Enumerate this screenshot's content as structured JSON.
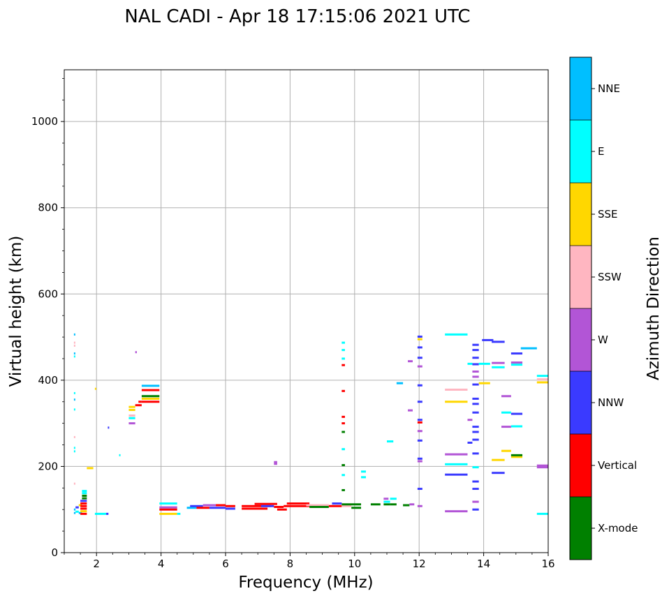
{
  "chart_data": {
    "type": "scatter",
    "title": "NAL CADI - Apr 18 17:15:06 2021 UTC",
    "xlabel": "Frequency (MHz)",
    "ylabel": "Virtual height (km)",
    "xlim": [
      1,
      16
    ],
    "ylim": [
      0,
      1120
    ],
    "xticks": [
      2,
      4,
      6,
      8,
      10,
      12,
      14,
      16
    ],
    "yticks": [
      0,
      200,
      400,
      600,
      800,
      1000
    ],
    "grid": true,
    "colorbar": {
      "label": "Azimuth Direction",
      "categories": [
        {
          "name": "X-mode",
          "color": "#008000"
        },
        {
          "name": "Vertical",
          "color": "#ff0000"
        },
        {
          "name": "NNW",
          "color": "#3a3aff"
        },
        {
          "name": "W",
          "color": "#b255d6"
        },
        {
          "name": "SSW",
          "color": "#ffb6c1"
        },
        {
          "name": "SSE",
          "color": "#ffd700"
        },
        {
          "name": "E",
          "color": "#00ffff"
        },
        {
          "name": "NNE",
          "color": "#00bfff"
        }
      ]
    },
    "echoes": [
      {
        "f1": 1.3,
        "f2": 1.35,
        "h": 92,
        "dir": "NNE"
      },
      {
        "f1": 1.3,
        "f2": 1.35,
        "h": 100,
        "dir": "NNE"
      },
      {
        "f1": 1.35,
        "f2": 1.45,
        "h": 95,
        "dir": "E"
      },
      {
        "f1": 1.35,
        "f2": 1.45,
        "h": 105,
        "dir": "NNW"
      },
      {
        "f1": 1.45,
        "f2": 1.55,
        "h": 92,
        "dir": "NNE"
      },
      {
        "f1": 1.45,
        "f2": 1.55,
        "h": 110,
        "dir": "SSE"
      },
      {
        "f1": 1.5,
        "f2": 1.7,
        "h": 90,
        "dir": "Vertical"
      },
      {
        "f1": 1.5,
        "f2": 1.7,
        "h": 96,
        "dir": "SSE"
      },
      {
        "f1": 1.5,
        "f2": 1.7,
        "h": 102,
        "dir": "Vertical"
      },
      {
        "f1": 1.5,
        "f2": 1.7,
        "h": 108,
        "dir": "Vertical"
      },
      {
        "f1": 1.5,
        "f2": 1.7,
        "h": 114,
        "dir": "Vertical"
      },
      {
        "f1": 1.5,
        "f2": 1.7,
        "h": 120,
        "dir": "NNW"
      },
      {
        "f1": 1.55,
        "f2": 1.7,
        "h": 126,
        "dir": "X-mode"
      },
      {
        "f1": 1.55,
        "f2": 1.7,
        "h": 132,
        "dir": "X-mode"
      },
      {
        "f1": 1.55,
        "f2": 1.7,
        "h": 138,
        "dir": "E"
      },
      {
        "f1": 1.55,
        "f2": 1.7,
        "h": 143,
        "dir": "E"
      },
      {
        "f1": 1.3,
        "f2": 1.33,
        "h": 160,
        "dir": "SSW"
      },
      {
        "f1": 1.3,
        "f2": 1.33,
        "h": 235,
        "dir": "E"
      },
      {
        "f1": 1.3,
        "f2": 1.33,
        "h": 243,
        "dir": "E"
      },
      {
        "f1": 1.3,
        "f2": 1.33,
        "h": 268,
        "dir": "SSW"
      },
      {
        "f1": 1.3,
        "f2": 1.33,
        "h": 332,
        "dir": "E"
      },
      {
        "f1": 1.3,
        "f2": 1.33,
        "h": 355,
        "dir": "NNE"
      },
      {
        "f1": 1.3,
        "f2": 1.33,
        "h": 370,
        "dir": "E"
      },
      {
        "f1": 1.3,
        "f2": 1.33,
        "h": 455,
        "dir": "E"
      },
      {
        "f1": 1.3,
        "f2": 1.33,
        "h": 462,
        "dir": "NNE"
      },
      {
        "f1": 1.3,
        "f2": 1.33,
        "h": 480,
        "dir": "SSW"
      },
      {
        "f1": 1.3,
        "f2": 1.33,
        "h": 487,
        "dir": "SSW"
      },
      {
        "f1": 1.3,
        "f2": 1.33,
        "h": 506,
        "dir": "NNE"
      },
      {
        "f1": 1.7,
        "f2": 1.9,
        "h": 196,
        "dir": "SSE"
      },
      {
        "f1": 1.95,
        "f2": 2.3,
        "h": 90,
        "dir": "E"
      },
      {
        "f1": 2.3,
        "f2": 2.37,
        "h": 90,
        "dir": "NNW"
      },
      {
        "f1": 2.35,
        "f2": 2.38,
        "h": 290,
        "dir": "NNW"
      },
      {
        "f1": 1.95,
        "f2": 1.98,
        "h": 380,
        "dir": "SSE"
      },
      {
        "f1": 2.7,
        "f2": 2.73,
        "h": 226,
        "dir": "E"
      },
      {
        "f1": 3.0,
        "f2": 3.2,
        "h": 300,
        "dir": "W"
      },
      {
        "f1": 3.0,
        "f2": 3.2,
        "h": 312,
        "dir": "E"
      },
      {
        "f1": 3.0,
        "f2": 3.2,
        "h": 318,
        "dir": "SSW"
      },
      {
        "f1": 3.0,
        "f2": 3.2,
        "h": 331,
        "dir": "SSE"
      },
      {
        "f1": 3.0,
        "f2": 3.2,
        "h": 338,
        "dir": "SSE"
      },
      {
        "f1": 3.2,
        "f2": 3.25,
        "h": 465,
        "dir": "W"
      },
      {
        "f1": 3.2,
        "f2": 3.4,
        "h": 342,
        "dir": "Vertical"
      },
      {
        "f1": 3.3,
        "f2": 3.4,
        "h": 350,
        "dir": "Vertical"
      },
      {
        "f1": 3.4,
        "f2": 3.95,
        "h": 350,
        "dir": "Vertical"
      },
      {
        "f1": 3.4,
        "f2": 3.95,
        "h": 357,
        "dir": "SSE"
      },
      {
        "f1": 3.4,
        "f2": 3.95,
        "h": 363,
        "dir": "X-mode"
      },
      {
        "f1": 3.4,
        "f2": 3.95,
        "h": 377,
        "dir": "Vertical"
      },
      {
        "f1": 3.4,
        "f2": 3.95,
        "h": 387,
        "dir": "NNE"
      },
      {
        "f1": 3.95,
        "f2": 4.5,
        "h": 90,
        "dir": "SSE"
      },
      {
        "f1": 3.95,
        "f2": 4.5,
        "h": 100,
        "dir": "Vertical"
      },
      {
        "f1": 3.95,
        "f2": 4.5,
        "h": 105,
        "dir": "W"
      },
      {
        "f1": 3.95,
        "f2": 4.5,
        "h": 114,
        "dir": "E"
      },
      {
        "f1": 4.5,
        "f2": 4.6,
        "h": 90,
        "dir": "E"
      },
      {
        "f1": 4.8,
        "f2": 5.1,
        "h": 104,
        "dir": "NNE"
      },
      {
        "f1": 4.9,
        "f2": 5.3,
        "h": 108,
        "dir": "NNW"
      },
      {
        "f1": 5.1,
        "f2": 5.5,
        "h": 104,
        "dir": "Vertical"
      },
      {
        "f1": 5.3,
        "f2": 5.8,
        "h": 110,
        "dir": "W"
      },
      {
        "f1": 5.5,
        "f2": 6.0,
        "h": 104,
        "dir": "NNW"
      },
      {
        "f1": 5.7,
        "f2": 6.0,
        "h": 110,
        "dir": "Vertical"
      },
      {
        "f1": 6.0,
        "f2": 6.3,
        "h": 102,
        "dir": "NNW"
      },
      {
        "f1": 6.0,
        "f2": 6.3,
        "h": 108,
        "dir": "Vertical"
      },
      {
        "f1": 6.5,
        "f2": 7.3,
        "h": 102,
        "dir": "Vertical"
      },
      {
        "f1": 6.5,
        "f2": 7.4,
        "h": 108,
        "dir": "Vertical"
      },
      {
        "f1": 6.9,
        "f2": 7.6,
        "h": 113,
        "dir": "Vertical"
      },
      {
        "f1": 7.1,
        "f2": 7.5,
        "h": 108,
        "dir": "NNW"
      },
      {
        "f1": 7.5,
        "f2": 7.8,
        "h": 106,
        "dir": "Vertical"
      },
      {
        "f1": 7.6,
        "f2": 7.9,
        "h": 100,
        "dir": "Vertical"
      },
      {
        "f1": 7.8,
        "f2": 8.6,
        "h": 108,
        "dir": "Vertical"
      },
      {
        "f1": 7.9,
        "f2": 8.6,
        "h": 114,
        "dir": "Vertical"
      },
      {
        "f1": 8.5,
        "f2": 9.2,
        "h": 110,
        "dir": "SSW"
      },
      {
        "f1": 8.6,
        "f2": 9.2,
        "h": 106,
        "dir": "X-mode"
      },
      {
        "f1": 9.2,
        "f2": 9.6,
        "h": 108,
        "dir": "Vertical"
      },
      {
        "f1": 9.3,
        "f2": 9.6,
        "h": 114,
        "dir": "NNW"
      },
      {
        "f1": 9.6,
        "f2": 9.9,
        "h": 108,
        "dir": "SSW"
      },
      {
        "f1": 9.6,
        "f2": 10.2,
        "h": 112,
        "dir": "X-mode"
      },
      {
        "f1": 9.9,
        "f2": 10.2,
        "h": 104,
        "dir": "X-mode"
      },
      {
        "f1": 10.5,
        "f2": 10.8,
        "h": 112,
        "dir": "X-mode"
      },
      {
        "f1": 10.9,
        "f2": 11.1,
        "h": 118,
        "dir": "E"
      },
      {
        "f1": 10.9,
        "f2": 11.1,
        "h": 112,
        "dir": "X-mode"
      },
      {
        "f1": 11.1,
        "f2": 11.3,
        "h": 112,
        "dir": "X-mode"
      },
      {
        "f1": 11.1,
        "f2": 11.3,
        "h": 125,
        "dir": "E"
      },
      {
        "f1": 10.9,
        "f2": 11.05,
        "h": 125,
        "dir": "W"
      },
      {
        "f1": 11.5,
        "f2": 11.7,
        "h": 110,
        "dir": "X-mode"
      },
      {
        "f1": 11.7,
        "f2": 11.85,
        "h": 112,
        "dir": "W"
      },
      {
        "f1": 7.5,
        "f2": 7.6,
        "h": 206,
        "dir": "W"
      },
      {
        "f1": 7.5,
        "f2": 7.6,
        "h": 210,
        "dir": "W"
      },
      {
        "f1": 9.6,
        "f2": 9.7,
        "h": 145,
        "dir": "X-mode"
      },
      {
        "f1": 9.6,
        "f2": 9.7,
        "h": 180,
        "dir": "E"
      },
      {
        "f1": 9.6,
        "f2": 9.7,
        "h": 203,
        "dir": "X-mode"
      },
      {
        "f1": 9.6,
        "f2": 9.7,
        "h": 240,
        "dir": "E"
      },
      {
        "f1": 9.6,
        "f2": 9.7,
        "h": 280,
        "dir": "X-mode"
      },
      {
        "f1": 9.6,
        "f2": 9.7,
        "h": 300,
        "dir": "Vertical"
      },
      {
        "f1": 9.6,
        "f2": 9.7,
        "h": 315,
        "dir": "Vertical"
      },
      {
        "f1": 9.6,
        "f2": 9.7,
        "h": 375,
        "dir": "Vertical"
      },
      {
        "f1": 9.6,
        "f2": 9.7,
        "h": 435,
        "dir": "Vertical"
      },
      {
        "f1": 9.6,
        "f2": 9.7,
        "h": 450,
        "dir": "E"
      },
      {
        "f1": 9.6,
        "f2": 9.7,
        "h": 470,
        "dir": "E"
      },
      {
        "f1": 9.6,
        "f2": 9.7,
        "h": 487,
        "dir": "E"
      },
      {
        "f1": 10.2,
        "f2": 10.35,
        "h": 175,
        "dir": "E"
      },
      {
        "f1": 10.2,
        "f2": 10.35,
        "h": 188,
        "dir": "E"
      },
      {
        "f1": 11.0,
        "f2": 11.2,
        "h": 258,
        "dir": "E"
      },
      {
        "f1": 11.3,
        "f2": 11.5,
        "h": 393,
        "dir": "NNE"
      },
      {
        "f1": 11.65,
        "f2": 11.8,
        "h": 330,
        "dir": "W"
      },
      {
        "f1": 11.65,
        "f2": 11.8,
        "h": 444,
        "dir": "W"
      },
      {
        "f1": 11.95,
        "f2": 12.1,
        "h": 108,
        "dir": "W"
      },
      {
        "f1": 11.95,
        "f2": 12.1,
        "h": 148,
        "dir": "NNW"
      },
      {
        "f1": 11.95,
        "f2": 12.1,
        "h": 212,
        "dir": "W"
      },
      {
        "f1": 11.95,
        "f2": 12.1,
        "h": 218,
        "dir": "NNW"
      },
      {
        "f1": 11.95,
        "f2": 12.1,
        "h": 260,
        "dir": "NNW"
      },
      {
        "f1": 11.95,
        "f2": 12.1,
        "h": 282,
        "dir": "W"
      },
      {
        "f1": 11.95,
        "f2": 12.1,
        "h": 302,
        "dir": "Vertical"
      },
      {
        "f1": 11.95,
        "f2": 12.1,
        "h": 308,
        "dir": "NNW"
      },
      {
        "f1": 11.95,
        "f2": 12.1,
        "h": 350,
        "dir": "NNW"
      },
      {
        "f1": 11.95,
        "f2": 12.1,
        "h": 388,
        "dir": "NNW"
      },
      {
        "f1": 11.95,
        "f2": 12.1,
        "h": 432,
        "dir": "W"
      },
      {
        "f1": 11.95,
        "f2": 12.1,
        "h": 452,
        "dir": "NNW"
      },
      {
        "f1": 11.95,
        "f2": 12.1,
        "h": 476,
        "dir": "NNW"
      },
      {
        "f1": 11.95,
        "f2": 12.1,
        "h": 495,
        "dir": "SSE"
      },
      {
        "f1": 11.95,
        "f2": 12.1,
        "h": 501,
        "dir": "NNW"
      },
      {
        "f1": 12.8,
        "f2": 13.5,
        "h": 96,
        "dir": "W"
      },
      {
        "f1": 12.8,
        "f2": 13.5,
        "h": 181,
        "dir": "NNW"
      },
      {
        "f1": 12.8,
        "f2": 13.5,
        "h": 205,
        "dir": "E"
      },
      {
        "f1": 12.8,
        "f2": 13.5,
        "h": 228,
        "dir": "W"
      },
      {
        "f1": 12.8,
        "f2": 13.5,
        "h": 350,
        "dir": "SSE"
      },
      {
        "f1": 12.8,
        "f2": 13.5,
        "h": 378,
        "dir": "SSW"
      },
      {
        "f1": 12.8,
        "f2": 13.5,
        "h": 506,
        "dir": "E"
      },
      {
        "f1": 13.5,
        "f2": 13.65,
        "h": 255,
        "dir": "NNW"
      },
      {
        "f1": 13.5,
        "f2": 13.65,
        "h": 308,
        "dir": "W"
      },
      {
        "f1": 13.5,
        "f2": 13.65,
        "h": 438,
        "dir": "E"
      },
      {
        "f1": 13.65,
        "f2": 13.85,
        "h": 100,
        "dir": "NNW"
      },
      {
        "f1": 13.65,
        "f2": 13.85,
        "h": 118,
        "dir": "W"
      },
      {
        "f1": 13.65,
        "f2": 13.85,
        "h": 148,
        "dir": "NNW"
      },
      {
        "f1": 13.65,
        "f2": 13.85,
        "h": 165,
        "dir": "NNW"
      },
      {
        "f1": 13.65,
        "f2": 13.85,
        "h": 198,
        "dir": "E"
      },
      {
        "f1": 13.65,
        "f2": 13.85,
        "h": 230,
        "dir": "NNW"
      },
      {
        "f1": 13.65,
        "f2": 13.85,
        "h": 262,
        "dir": "NNW"
      },
      {
        "f1": 13.65,
        "f2": 13.85,
        "h": 280,
        "dir": "NNW"
      },
      {
        "f1": 13.65,
        "f2": 13.85,
        "h": 292,
        "dir": "NNW"
      },
      {
        "f1": 13.65,
        "f2": 13.85,
        "h": 325,
        "dir": "NNW"
      },
      {
        "f1": 13.65,
        "f2": 13.85,
        "h": 345,
        "dir": "NNW"
      },
      {
        "f1": 13.65,
        "f2": 13.85,
        "h": 357,
        "dir": "NNW"
      },
      {
        "f1": 13.65,
        "f2": 13.85,
        "h": 390,
        "dir": "NNW"
      },
      {
        "f1": 13.65,
        "f2": 13.85,
        "h": 408,
        "dir": "W"
      },
      {
        "f1": 13.65,
        "f2": 13.85,
        "h": 420,
        "dir": "W"
      },
      {
        "f1": 13.65,
        "f2": 13.85,
        "h": 437,
        "dir": "NNW"
      },
      {
        "f1": 13.65,
        "f2": 13.85,
        "h": 452,
        "dir": "NNW"
      },
      {
        "f1": 13.65,
        "f2": 13.85,
        "h": 470,
        "dir": "NNW"
      },
      {
        "f1": 13.65,
        "f2": 13.85,
        "h": 482,
        "dir": "NNW"
      },
      {
        "f1": 13.85,
        "f2": 14.2,
        "h": 393,
        "dir": "SSE"
      },
      {
        "f1": 13.85,
        "f2": 14.2,
        "h": 438,
        "dir": "E"
      },
      {
        "f1": 13.95,
        "f2": 14.3,
        "h": 493,
        "dir": "NNW"
      },
      {
        "f1": 14.25,
        "f2": 14.65,
        "h": 489,
        "dir": "NNW"
      },
      {
        "f1": 14.25,
        "f2": 14.65,
        "h": 440,
        "dir": "W"
      },
      {
        "f1": 14.25,
        "f2": 14.65,
        "h": 430,
        "dir": "E"
      },
      {
        "f1": 14.25,
        "f2": 14.65,
        "h": 215,
        "dir": "SSE"
      },
      {
        "f1": 14.25,
        "f2": 14.65,
        "h": 185,
        "dir": "NNW"
      },
      {
        "f1": 14.55,
        "f2": 14.85,
        "h": 236,
        "dir": "SSE"
      },
      {
        "f1": 14.55,
        "f2": 14.85,
        "h": 292,
        "dir": "W"
      },
      {
        "f1": 14.55,
        "f2": 14.85,
        "h": 325,
        "dir": "E"
      },
      {
        "f1": 14.55,
        "f2": 14.85,
        "h": 363,
        "dir": "W"
      },
      {
        "f1": 14.85,
        "f2": 15.2,
        "h": 222,
        "dir": "SSE"
      },
      {
        "f1": 14.85,
        "f2": 15.2,
        "h": 226,
        "dir": "X-mode"
      },
      {
        "f1": 14.85,
        "f2": 15.2,
        "h": 293,
        "dir": "E"
      },
      {
        "f1": 14.85,
        "f2": 15.2,
        "h": 322,
        "dir": "NNW"
      },
      {
        "f1": 14.85,
        "f2": 15.2,
        "h": 436,
        "dir": "E"
      },
      {
        "f1": 14.85,
        "f2": 15.2,
        "h": 441,
        "dir": "W"
      },
      {
        "f1": 14.85,
        "f2": 15.2,
        "h": 462,
        "dir": "NNW"
      },
      {
        "f1": 15.15,
        "f2": 15.65,
        "h": 474,
        "dir": "NNE"
      },
      {
        "f1": 15.65,
        "f2": 16.0,
        "h": 90,
        "dir": "E"
      },
      {
        "f1": 15.65,
        "f2": 16.0,
        "h": 198,
        "dir": "W"
      },
      {
        "f1": 15.65,
        "f2": 16.0,
        "h": 202,
        "dir": "W"
      },
      {
        "f1": 15.65,
        "f2": 16.0,
        "h": 395,
        "dir": "SSE"
      },
      {
        "f1": 15.65,
        "f2": 16.0,
        "h": 402,
        "dir": "SSW"
      },
      {
        "f1": 15.65,
        "f2": 16.0,
        "h": 410,
        "dir": "E"
      }
    ]
  }
}
